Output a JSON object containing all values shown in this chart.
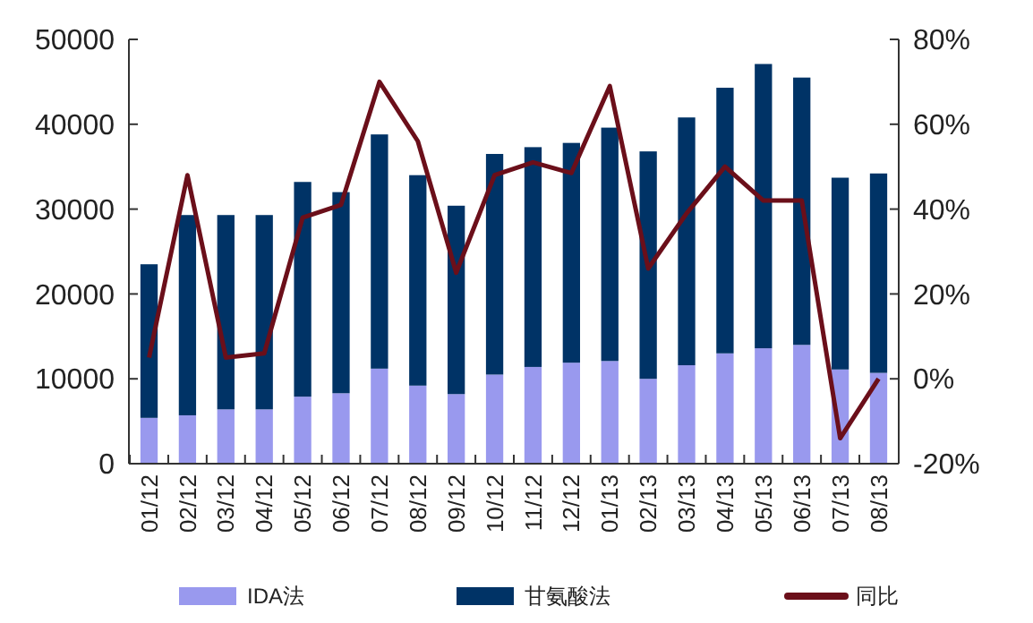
{
  "chart_data": {
    "type": "bar",
    "stacked": true,
    "categories": [
      "01/12",
      "02/12",
      "03/12",
      "04/12",
      "05/12",
      "06/12",
      "07/12",
      "08/12",
      "09/12",
      "10/12",
      "11/12",
      "12/12",
      "01/13",
      "02/13",
      "03/13",
      "04/13",
      "05/13",
      "06/13",
      "07/13",
      "08/13"
    ],
    "series": [
      {
        "name": "IDA法",
        "color": "#9999ee",
        "values": [
          5400,
          5700,
          6400,
          6400,
          7900,
          8300,
          11200,
          9200,
          8200,
          10500,
          11400,
          11900,
          12100,
          10000,
          11600,
          13000,
          13600,
          14000,
          11100,
          10700
        ]
      },
      {
        "name": "甘氨酸法",
        "color": "#003366",
        "values": [
          18100,
          23600,
          22900,
          22900,
          25300,
          23700,
          27600,
          24800,
          22200,
          26000,
          25900,
          25900,
          27500,
          26800,
          29200,
          31300,
          33500,
          31500,
          22600,
          23500
        ]
      },
      {
        "name": "同比",
        "type": "line",
        "axis": "y2",
        "color": "#6b0f1a",
        "values": [
          5,
          48,
          5,
          6,
          38,
          41,
          70,
          56,
          25,
          48,
          51,
          48.5,
          69,
          26,
          39,
          50,
          42,
          42,
          -14,
          0
        ]
      }
    ],
    "ylim": [
      0,
      50000
    ],
    "yticks": [
      0,
      10000,
      20000,
      30000,
      40000,
      50000
    ],
    "y2lim": [
      -20,
      80
    ],
    "y2ticks": [
      {
        "value": -20,
        "label": "-20%"
      },
      {
        "value": 0,
        "label": "0%"
      },
      {
        "value": 20,
        "label": "20%"
      },
      {
        "value": 40,
        "label": "40%"
      },
      {
        "value": 60,
        "label": "60%"
      },
      {
        "value": 80,
        "label": "80%"
      }
    ],
    "legend": "bottom",
    "grid": false,
    "marker": "none"
  }
}
